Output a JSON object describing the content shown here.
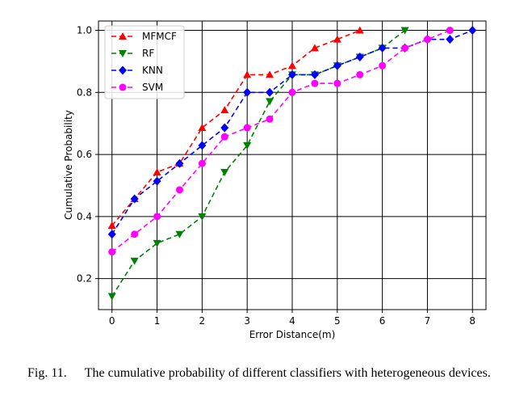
{
  "caption": {
    "label": "Fig. 11.",
    "text": "The cumulative probability of different classifiers with heterogeneous devices."
  },
  "chart_data": {
    "type": "line",
    "title": "",
    "xlabel": "Error Distance(m)",
    "ylabel": "Cumulative Probability",
    "xlim": [
      -0.3,
      8.3
    ],
    "ylim": [
      0.1,
      1.03
    ],
    "xticks": [
      0,
      1,
      2,
      3,
      4,
      5,
      6,
      7,
      8
    ],
    "yticks": [
      0.2,
      0.4,
      0.6,
      0.8,
      1.0
    ],
    "ytick_labels": [
      "0.2",
      "0.4",
      "0.6",
      "0.8",
      "1.0"
    ],
    "grid": true,
    "legend_position": "top-left",
    "series": [
      {
        "name": "MFMCF",
        "color": "#ff0000",
        "marker": "triangle-up",
        "x": [
          0,
          0.5,
          1,
          1.5,
          2,
          2.5,
          3,
          3.5,
          4,
          4.5,
          5,
          5.5
        ],
        "y": [
          0.371,
          0.457,
          0.543,
          0.571,
          0.686,
          0.743,
          0.857,
          0.857,
          0.886,
          0.943,
          0.971,
          1.0
        ]
      },
      {
        "name": "RF",
        "color": "#008000",
        "marker": "triangle-down",
        "x": [
          0,
          0.5,
          1,
          1.5,
          2,
          2.5,
          3,
          3.5,
          4,
          4.5,
          5,
          5.5,
          6,
          6.5
        ],
        "y": [
          0.143,
          0.257,
          0.314,
          0.343,
          0.4,
          0.543,
          0.629,
          0.771,
          0.857,
          0.857,
          0.886,
          0.914,
          0.943,
          1.0
        ]
      },
      {
        "name": "KNN",
        "color": "#0000ff",
        "marker": "diamond",
        "x": [
          0,
          0.5,
          1,
          1.5,
          2,
          2.5,
          3,
          3.5,
          4,
          4.5,
          5,
          5.5,
          6,
          6.5,
          7,
          7.5,
          8
        ],
        "y": [
          0.343,
          0.457,
          0.514,
          0.571,
          0.629,
          0.686,
          0.8,
          0.8,
          0.857,
          0.857,
          0.886,
          0.914,
          0.943,
          0.943,
          0.971,
          0.971,
          1.0
        ]
      },
      {
        "name": "SVM",
        "color": "#ff00ff",
        "marker": "circle",
        "x": [
          0,
          0.5,
          1,
          1.5,
          2,
          2.5,
          3,
          3.5,
          4,
          4.5,
          5,
          5.5,
          6,
          6.5,
          7,
          7.5
        ],
        "y": [
          0.286,
          0.343,
          0.4,
          0.486,
          0.571,
          0.657,
          0.686,
          0.714,
          0.8,
          0.829,
          0.829,
          0.857,
          0.886,
          0.943,
          0.971,
          1.0
        ]
      }
    ]
  }
}
